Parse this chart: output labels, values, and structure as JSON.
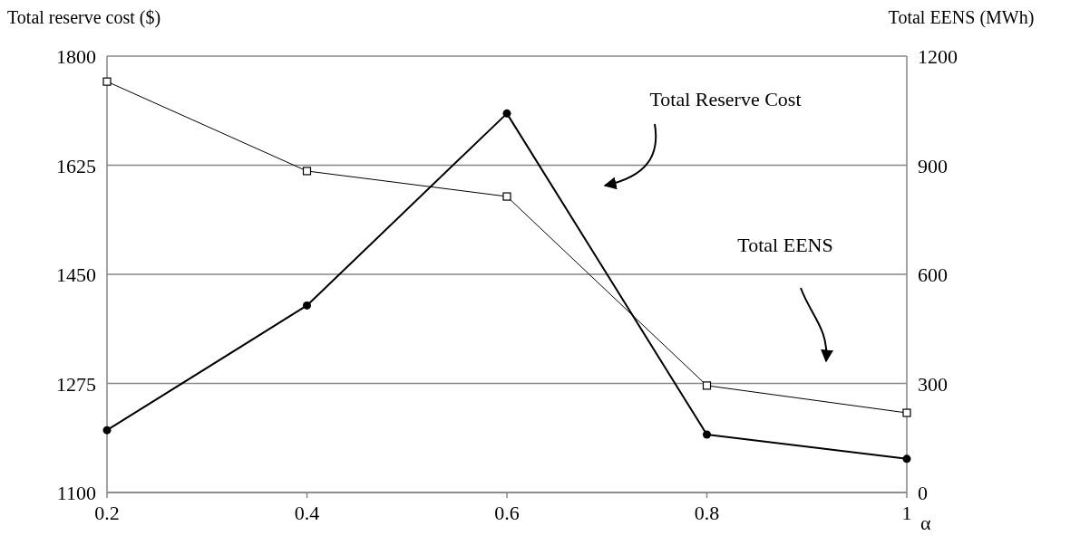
{
  "chart_data": {
    "type": "line",
    "xlabel": "α",
    "ylabel": "Total reserve cost ($)",
    "y2label": "Total EENS (MWh)",
    "x": [
      0.2,
      0.4,
      0.6,
      0.8,
      1
    ],
    "xlim": [
      0.2,
      1
    ],
    "xticks": [
      0.2,
      0.4,
      0.6,
      0.8,
      1
    ],
    "ylim": [
      1100,
      1800
    ],
    "yticks": [
      1100,
      1275,
      1450,
      1625,
      1800
    ],
    "y2lim": [
      0,
      1200
    ],
    "y2ticks": [
      0,
      300,
      600,
      900,
      1200
    ],
    "grid": "y",
    "annotations": [
      "Total Reserve Cost",
      "Total EENS"
    ],
    "series": [
      {
        "color": "#000000",
        "marker": "circle",
        "values": [
          1200,
          1400,
          1708,
          1193,
          1154
        ]
      },
      {
        "color": "#000000",
        "marker": "square",
        "axis": "y2",
        "values": [
          1130,
          884,
          814,
          294,
          219
        ]
      }
    ]
  }
}
